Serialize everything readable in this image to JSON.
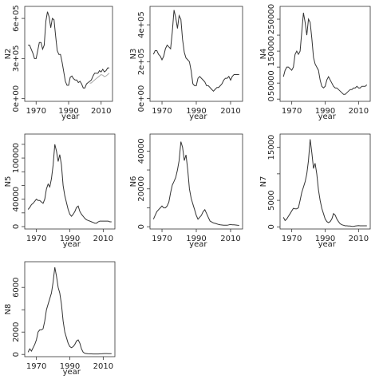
{
  "chart_data": [
    {
      "type": "line",
      "ylabel": "N2",
      "xlabel": "year",
      "xlim": [
        1963,
        2017
      ],
      "ylim": [
        -20000,
        690000
      ],
      "xticks": [
        1970,
        1990,
        2010
      ],
      "xtick_labels": [
        "1970",
        "1990",
        "2010"
      ],
      "yticks": [
        0,
        300000,
        600000
      ],
      "ytick_labels": [
        "0e+00",
        "3e+05",
        "6e+05"
      ],
      "series": [
        {
          "color": "#333333",
          "x": [
            1965,
            1966,
            1967,
            1968,
            1969,
            1970,
            1971,
            1972,
            1973,
            1974,
            1975,
            1976,
            1977,
            1978,
            1979,
            1980,
            1981,
            1982,
            1983,
            1984,
            1985,
            1986,
            1987,
            1988,
            1989,
            1990,
            1991,
            1992,
            1993,
            1994,
            1995,
            1996,
            1997,
            1998,
            1999,
            2000,
            2001,
            2002,
            2003,
            2004,
            2005,
            2006,
            2007,
            2008,
            2009,
            2010,
            2011,
            2012,
            2013,
            2014,
            2015
          ],
          "values": [
            400000,
            400000,
            370000,
            340000,
            300000,
            300000,
            360000,
            420000,
            420000,
            370000,
            400000,
            580000,
            650000,
            610000,
            530000,
            600000,
            590000,
            470000,
            360000,
            330000,
            330000,
            270000,
            200000,
            130000,
            100000,
            100000,
            160000,
            170000,
            150000,
            140000,
            140000,
            120000,
            130000,
            110000,
            80000,
            80000,
            110000,
            120000,
            130000,
            140000,
            170000,
            190000,
            190000,
            190000,
            210000,
            200000,
            220000,
            200000,
            210000,
            230000,
            230000
          ]
        },
        {
          "color": "#aaaaaa",
          "x": [
            2003,
            2004,
            2005,
            2006,
            2007,
            2008,
            2009,
            2010,
            2011,
            2012,
            2013,
            2014,
            2015
          ],
          "values": [
            115000,
            118000,
            130000,
            140000,
            150000,
            160000,
            170000,
            180000,
            175000,
            165000,
            170000,
            180000,
            190000
          ]
        }
      ]
    },
    {
      "type": "line",
      "ylabel": "N3",
      "xlabel": "year",
      "xlim": [
        1963,
        2017
      ],
      "ylim": [
        -15000,
        500000
      ],
      "xticks": [
        1970,
        1990,
        2010
      ],
      "xtick_labels": [
        "1970",
        "1990",
        "2010"
      ],
      "yticks": [
        0,
        200000,
        400000
      ],
      "ytick_labels": [
        "0e+00",
        "2e+05",
        "4e+05"
      ],
      "series": [
        {
          "color": "#333333",
          "x": [
            1965,
            1966,
            1967,
            1968,
            1969,
            1970,
            1971,
            1972,
            1973,
            1974,
            1975,
            1976,
            1977,
            1978,
            1979,
            1980,
            1981,
            1982,
            1983,
            1984,
            1985,
            1986,
            1987,
            1988,
            1989,
            1990,
            1991,
            1992,
            1993,
            1994,
            1995,
            1996,
            1997,
            1998,
            1999,
            2000,
            2001,
            2002,
            2003,
            2004,
            2005,
            2006,
            2007,
            2008,
            2009,
            2010,
            2011,
            2012,
            2013,
            2014,
            2015
          ],
          "values": [
            240000,
            260000,
            260000,
            240000,
            230000,
            210000,
            230000,
            270000,
            290000,
            280000,
            270000,
            360000,
            480000,
            440000,
            380000,
            450000,
            430000,
            320000,
            250000,
            220000,
            210000,
            200000,
            150000,
            80000,
            70000,
            70000,
            110000,
            120000,
            110000,
            100000,
            90000,
            70000,
            70000,
            60000,
            50000,
            40000,
            50000,
            60000,
            60000,
            70000,
            80000,
            100000,
            110000,
            110000,
            120000,
            100000,
            120000,
            130000,
            130000,
            130000,
            130000
          ]
        }
      ]
    },
    {
      "type": "line",
      "ylabel": "N4",
      "xlabel": "year",
      "xlim": [
        1963,
        2017
      ],
      "ylim": [
        -7000,
        290000
      ],
      "xticks": [
        1970,
        1990,
        2010
      ],
      "xtick_labels": [
        "1970",
        "1990",
        "2010"
      ],
      "yticks": [
        0,
        50000,
        100000,
        150000,
        200000,
        250000
      ],
      "ytick_labels": [
        "0",
        "50000",
        "",
        "150000",
        "",
        "250000"
      ],
      "series": [
        {
          "color": "#333333",
          "x": [
            1965,
            1966,
            1967,
            1968,
            1969,
            1970,
            1971,
            1972,
            1973,
            1974,
            1975,
            1976,
            1977,
            1978,
            1979,
            1980,
            1981,
            1982,
            1983,
            1984,
            1985,
            1986,
            1987,
            1988,
            1989,
            1990,
            1991,
            1992,
            1993,
            1994,
            1995,
            1996,
            1997,
            1998,
            1999,
            2000,
            2001,
            2002,
            2003,
            2004,
            2005,
            2006,
            2007,
            2008,
            2009,
            2010,
            2011,
            2012,
            2013,
            2014,
            2015
          ],
          "values": [
            70000,
            90000,
            100000,
            100000,
            95000,
            90000,
            100000,
            140000,
            150000,
            140000,
            150000,
            210000,
            270000,
            240000,
            200000,
            250000,
            240000,
            190000,
            130000,
            110000,
            100000,
            90000,
            60000,
            40000,
            35000,
            40000,
            60000,
            70000,
            60000,
            50000,
            40000,
            35000,
            35000,
            30000,
            25000,
            20000,
            15000,
            15000,
            20000,
            25000,
            30000,
            30000,
            35000,
            35000,
            40000,
            35000,
            35000,
            40000,
            40000,
            40000,
            45000
          ]
        }
      ]
    },
    {
      "type": "line",
      "ylabel": "N5",
      "xlabel": "year",
      "xlim": [
        1963,
        2017
      ],
      "ylim": [
        -3500,
        135000
      ],
      "xticks": [
        1970,
        1990,
        2010
      ],
      "xtick_labels": [
        "1970",
        "1990",
        "2010"
      ],
      "yticks": [
        0,
        20000,
        40000,
        60000,
        80000,
        100000,
        120000
      ],
      "ytick_labels": [
        "0",
        "",
        "40000",
        "",
        "",
        "100000",
        ""
      ],
      "series": [
        {
          "color": "#333333",
          "x": [
            1965,
            1966,
            1967,
            1968,
            1969,
            1970,
            1971,
            1972,
            1973,
            1974,
            1975,
            1976,
            1977,
            1978,
            1979,
            1980,
            1981,
            1982,
            1983,
            1984,
            1985,
            1986,
            1987,
            1988,
            1989,
            1990,
            1991,
            1992,
            1993,
            1994,
            1995,
            1996,
            1997,
            1998,
            1999,
            2000,
            2001,
            2002,
            2003,
            2004,
            2005,
            2006,
            2007,
            2008,
            2009,
            2010,
            2011,
            2012,
            2013,
            2014,
            2015
          ],
          "values": [
            25000,
            28000,
            32000,
            34000,
            37000,
            40000,
            38000,
            38000,
            36000,
            34000,
            40000,
            55000,
            62000,
            58000,
            70000,
            90000,
            120000,
            110000,
            95000,
            105000,
            90000,
            60000,
            45000,
            35000,
            25000,
            18000,
            15000,
            18000,
            22000,
            28000,
            30000,
            22000,
            18000,
            15000,
            12000,
            10000,
            9000,
            8000,
            7000,
            6000,
            5000,
            5000,
            7000,
            8000,
            8000,
            8000,
            8000,
            8000,
            8000,
            7000,
            7000
          ]
        }
      ]
    },
    {
      "type": "line",
      "ylabel": "N6",
      "xlabel": "year",
      "xlim": [
        1963,
        2017
      ],
      "ylim": [
        -1200,
        49000
      ],
      "xticks": [
        1970,
        1990,
        2010
      ],
      "xtick_labels": [
        "1970",
        "1990",
        "2010"
      ],
      "yticks": [
        0,
        10000,
        20000,
        30000,
        40000
      ],
      "ytick_labels": [
        "0",
        "",
        "20000",
        "",
        "40000"
      ],
      "series": [
        {
          "color": "#333333",
          "x": [
            1965,
            1966,
            1967,
            1968,
            1969,
            1970,
            1971,
            1972,
            1973,
            1974,
            1975,
            1976,
            1977,
            1978,
            1979,
            1980,
            1981,
            1982,
            1983,
            1984,
            1985,
            1986,
            1987,
            1988,
            1989,
            1990,
            1991,
            1992,
            1993,
            1994,
            1995,
            1996,
            1997,
            1998,
            1999,
            2000,
            2001,
            2002,
            2003,
            2004,
            2005,
            2006,
            2007,
            2008,
            2009,
            2010,
            2011,
            2012,
            2013,
            2014,
            2015
          ],
          "values": [
            4000,
            6000,
            8000,
            9000,
            10000,
            11000,
            10000,
            10000,
            11000,
            13000,
            18000,
            22000,
            24000,
            26000,
            30000,
            35000,
            45000,
            42000,
            35000,
            38000,
            30000,
            20000,
            15000,
            12000,
            9000,
            6000,
            4000,
            5000,
            6000,
            8000,
            9000,
            7000,
            5000,
            3000,
            2500,
            2000,
            1800,
            1500,
            1200,
            1000,
            900,
            800,
            800,
            800,
            1000,
            1200,
            1000,
            1000,
            900,
            800,
            700
          ]
        }
      ]
    },
    {
      "type": "line",
      "ylabel": "N7",
      "xlabel": "year",
      "xlim": [
        1963,
        2017
      ],
      "ylim": [
        -400,
        17500
      ],
      "xticks": [
        1970,
        1990,
        2010
      ],
      "xtick_labels": [
        "1970",
        "1990",
        "2010"
      ],
      "yticks": [
        0,
        5000,
        10000,
        15000
      ],
      "ytick_labels": [
        "0",
        "5000",
        "",
        "15000"
      ],
      "series": [
        {
          "color": "#333333",
          "x": [
            1965,
            1966,
            1967,
            1968,
            1969,
            1970,
            1971,
            1972,
            1973,
            1974,
            1975,
            1976,
            1977,
            1978,
            1979,
            1980,
            1981,
            1982,
            1983,
            1984,
            1985,
            1986,
            1987,
            1988,
            1989,
            1990,
            1991,
            1992,
            1993,
            1994,
            1995,
            1996,
            1997,
            1998,
            1999,
            2000,
            2001,
            2002,
            2003,
            2004,
            2005,
            2006,
            2007,
            2008,
            2009,
            2010,
            2011,
            2012,
            2013,
            2014,
            2015
          ],
          "values": [
            1800,
            1200,
            1500,
            2000,
            2500,
            3000,
            3500,
            3400,
            3400,
            3600,
            5000,
            6500,
            7500,
            8500,
            10000,
            12500,
            16500,
            14000,
            11000,
            12000,
            10000,
            7000,
            5000,
            3500,
            2500,
            1500,
            1000,
            800,
            1000,
            1500,
            2500,
            2200,
            1500,
            1000,
            600,
            400,
            300,
            200,
            200,
            150,
            150,
            100,
            100,
            150,
            200,
            250,
            200,
            200,
            200,
            200,
            200
          ]
        }
      ]
    },
    {
      "type": "line",
      "ylabel": "N8",
      "xlabel": "year",
      "xlim": [
        1963,
        2017
      ],
      "ylim": [
        -200,
        8300
      ],
      "xticks": [
        1970,
        1990,
        2010
      ],
      "xtick_labels": [
        "1970",
        "1990",
        "2010"
      ],
      "yticks": [
        0,
        2000,
        4000,
        6000
      ],
      "ytick_labels": [
        "0",
        "2000",
        "",
        "6000"
      ],
      "series": [
        {
          "color": "#333333",
          "x": [
            1965,
            1966,
            1967,
            1968,
            1969,
            1970,
            1971,
            1972,
            1973,
            1974,
            1975,
            1976,
            1977,
            1978,
            1979,
            1980,
            1981,
            1982,
            1983,
            1984,
            1985,
            1986,
            1987,
            1988,
            1989,
            1990,
            1991,
            1992,
            1993,
            1994,
            1995,
            1996,
            1997,
            1998,
            1999,
            2000,
            2001,
            2002,
            2003,
            2004,
            2005,
            2006,
            2007,
            2008,
            2009,
            2010,
            2011,
            2012,
            2013,
            2014,
            2015
          ],
          "values": [
            200,
            500,
            300,
            600,
            900,
            1300,
            2000,
            2200,
            2200,
            2300,
            3000,
            4000,
            4500,
            5000,
            5500,
            6500,
            7800,
            7000,
            6000,
            5500,
            4500,
            3000,
            2000,
            1500,
            1000,
            700,
            600,
            700,
            900,
            1200,
            1300,
            1000,
            500,
            200,
            100,
            80,
            60,
            50,
            50,
            40,
            40,
            40,
            40,
            50,
            60,
            70,
            80,
            80,
            70,
            70,
            70
          ]
        }
      ]
    }
  ]
}
